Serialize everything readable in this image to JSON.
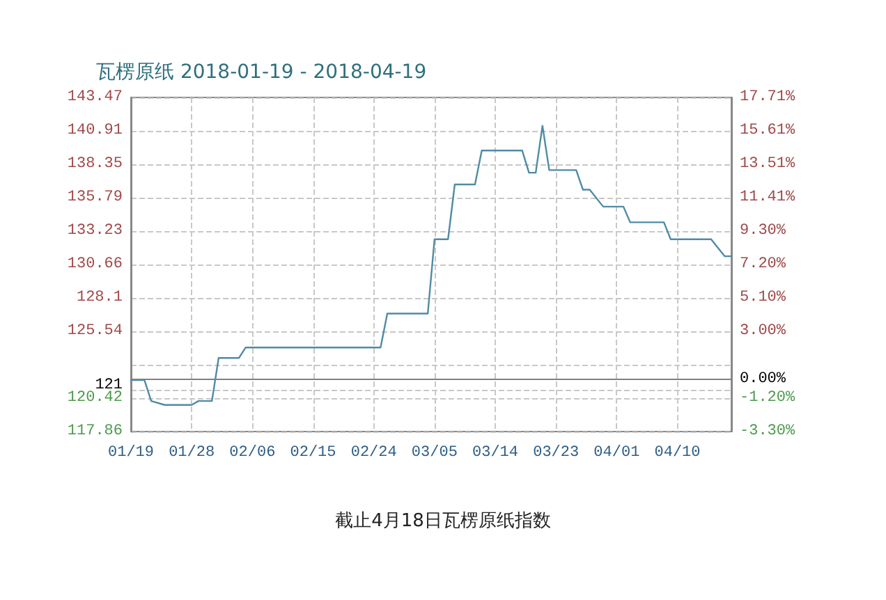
{
  "chart_data": {
    "type": "line",
    "title": "瓦楞原纸 2018-01-19 - 2018-04-19",
    "annotations": [
      "截止4月18日瓦楞原纸指数"
    ],
    "x": [
      "2018-01-19",
      "2018-01-21",
      "2018-01-22",
      "2018-01-24",
      "2018-01-28",
      "2018-01-29",
      "2018-01-31",
      "2018-02-01",
      "2018-02-04",
      "2018-02-05",
      "2018-02-25",
      "2018-02-26",
      "2018-03-04",
      "2018-03-05",
      "2018-03-07",
      "2018-03-08",
      "2018-03-11",
      "2018-03-12",
      "2018-03-18",
      "2018-03-19",
      "2018-03-20",
      "2018-03-21",
      "2018-03-22",
      "2018-03-26",
      "2018-03-27",
      "2018-03-28",
      "2018-03-30",
      "2018-04-02",
      "2018-04-03",
      "2018-04-08",
      "2018-04-09",
      "2018-04-15",
      "2018-04-17",
      "2018-04-18"
    ],
    "series": [
      {
        "color": "#4f8ba6",
        "values": [
          121.8,
          121.8,
          120.2,
          119.9,
          119.9,
          120.2,
          120.2,
          123.5,
          123.5,
          124.3,
          124.3,
          126.9,
          126.9,
          132.6,
          132.6,
          136.8,
          136.8,
          139.4,
          139.4,
          137.7,
          137.7,
          141.3,
          137.9,
          137.9,
          136.4,
          136.4,
          135.1,
          135.1,
          133.9,
          133.9,
          132.6,
          132.6,
          131.3,
          131.3
        ]
      }
    ],
    "xlim": [
      "2018-01-19",
      "2018-04-18"
    ],
    "xticks": [
      {
        "value": "2018-01-19",
        "label": "01/19"
      },
      {
        "value": "2018-01-28",
        "label": "01/28"
      },
      {
        "value": "2018-02-06",
        "label": "02/06"
      },
      {
        "value": "2018-02-15",
        "label": "02/15"
      },
      {
        "value": "2018-02-24",
        "label": "02/24"
      },
      {
        "value": "2018-03-05",
        "label": "03/05"
      },
      {
        "value": "2018-03-14",
        "label": "03/14"
      },
      {
        "value": "2018-03-23",
        "label": "03/23"
      },
      {
        "value": "2018-04-01",
        "label": "04/01"
      },
      {
        "value": "2018-04-10",
        "label": "04/10"
      }
    ],
    "ylim": [
      117.86,
      143.47
    ],
    "yticks": [
      117.86,
      120.42,
      121,
      {
        "value": 122.98,
        "label": null
      },
      125.54,
      128.1,
      130.66,
      133.23,
      135.79,
      138.35,
      140.91,
      143.47
    ],
    "y2lim": [
      -3.3,
      17.71
    ],
    "y2ticks": [
      {
        "value": -3.3,
        "label": "-3.30%"
      },
      {
        "value": -1.2,
        "label": "-1.20%"
      },
      {
        "value": 0,
        "label": "0.00%"
      },
      {
        "value": 3.0,
        "label": "3.00%"
      },
      {
        "value": 5.1,
        "label": "5.10%"
      },
      {
        "value": 7.2,
        "label": "7.20%"
      },
      {
        "value": 9.3,
        "label": "9.30%"
      },
      {
        "value": 11.41,
        "label": "11.41%"
      },
      {
        "value": 13.51,
        "label": "13.51%"
      },
      {
        "value": 15.61,
        "label": "15.61%"
      },
      {
        "value": 17.71,
        "label": "17.71%"
      }
    ],
    "ref_lines": [
      {
        "axis": "y2",
        "value": 0,
        "color": "#808080"
      }
    ],
    "grid": true,
    "marker": "none",
    "line_style": "solid"
  }
}
